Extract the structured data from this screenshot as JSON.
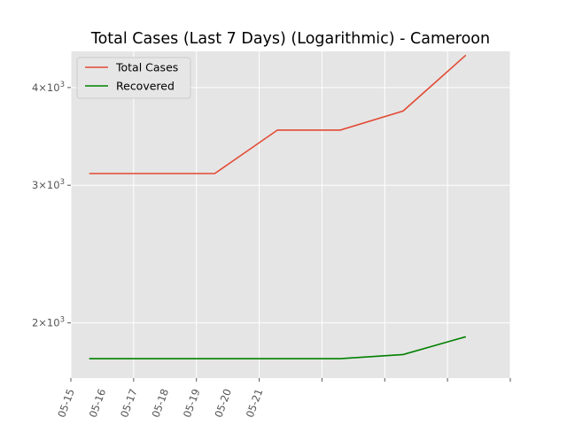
{
  "chart_data": {
    "type": "line",
    "title": "Total Cases (Last 7 Days) (Logarithmic) - Cameroon",
    "xlabel": "",
    "ylabel": "",
    "y_scale": "log",
    "grid": true,
    "legend_position": "top-left",
    "x_tick_labels": [
      "05-15",
      "05-16",
      "05-17",
      "05-18",
      "05-19",
      "05-20",
      "05-21"
    ],
    "y_ticks": [
      {
        "value": 2000,
        "base": "2",
        "exp": "3"
      },
      {
        "value": 3000,
        "base": "3",
        "exp": "3"
      },
      {
        "value": 4000,
        "base": "4",
        "exp": "3"
      }
    ],
    "x": [
      "05-15 14:00",
      "05-17 14:00",
      "05-19 14:00",
      "05-21 14:00",
      "05-23 14:00",
      "05-25 14:00",
      "05-27 14:00"
    ],
    "ylim": [
      1700,
      4450
    ],
    "series": [
      {
        "name": "Total Cases",
        "color": "#e24a33",
        "values": [
          3105,
          3105,
          3105,
          3529,
          3529,
          3733,
          4400
        ]
      },
      {
        "name": "Recovered",
        "color": "#008000",
        "values": [
          1800,
          1800,
          1800,
          1800,
          1800,
          1822,
          1920
        ]
      }
    ]
  }
}
